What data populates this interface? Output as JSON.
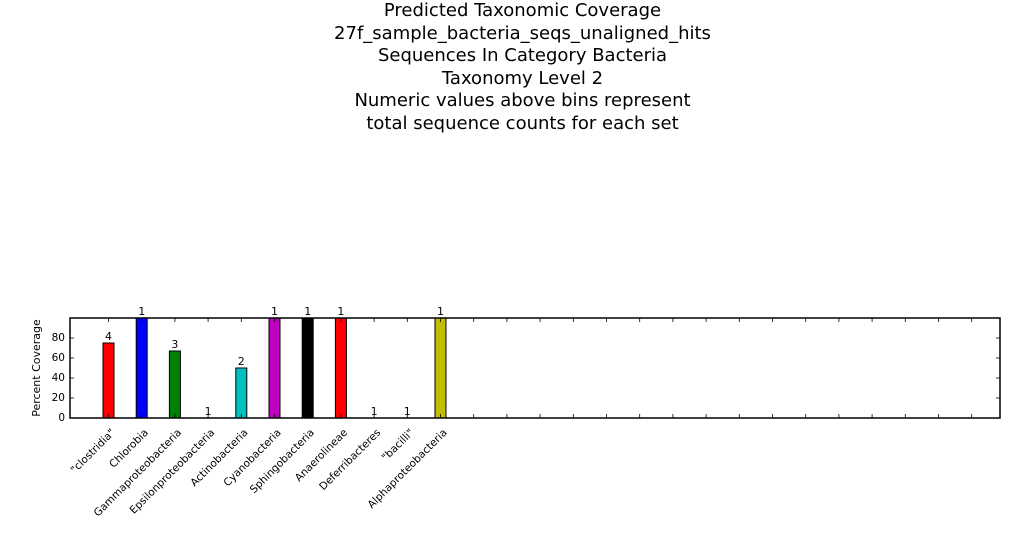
{
  "chart_data": {
    "type": "bar",
    "title_lines": [
      "Predicted Taxonomic Coverage",
      "27f_sample_bacteria_seqs_unaligned_hits",
      "Sequences In Category Bacteria",
      "Taxonomy Level 2",
      "Numeric values above bins represent",
      "total sequence counts for each set"
    ],
    "xlabel": "",
    "ylabel": "Percent Coverage",
    "ylim": [
      0,
      100
    ],
    "yticks": [
      0,
      20,
      40,
      60,
      80
    ],
    "grid": false,
    "categories": [
      "\"clostridia\"",
      "Chlorobia",
      "Gammaproteobacteria",
      "Epsilonproteobacteria",
      "Actinobacteria",
      "Cyanobacteria",
      "Sphingobacteria",
      "Anaerolineae",
      "Deferribacteres",
      "\"bacilli\"",
      "Alphaproteobacteria"
    ],
    "values": [
      75,
      100,
      67,
      0,
      50,
      100,
      100,
      100,
      0,
      0,
      100
    ],
    "counts": [
      "4",
      "1",
      "3",
      "1",
      "2",
      "1",
      "1",
      "1",
      "1",
      "1",
      "1"
    ],
    "colors": [
      "#ff0000",
      "#0000ff",
      "#008000",
      "#000000",
      "#00bfbf",
      "#bf00bf",
      "#000000",
      "#ff0000",
      "#000000",
      "#000000",
      "#bfbf00"
    ]
  }
}
